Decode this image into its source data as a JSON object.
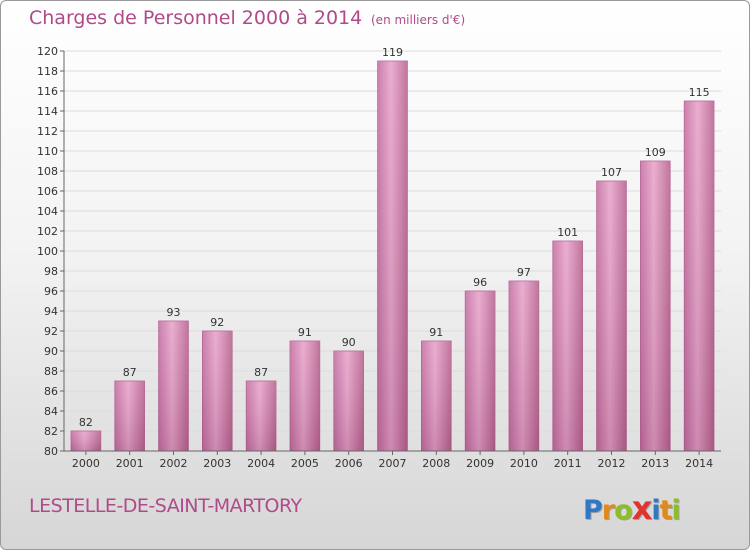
{
  "chart_data": {
    "type": "bar",
    "title": "Charges de Personnel 2000 à 2014",
    "subtitle": "(en milliers d'€)",
    "categories": [
      "2000",
      "2001",
      "2002",
      "2003",
      "2004",
      "2005",
      "2006",
      "2007",
      "2008",
      "2009",
      "2010",
      "2011",
      "2012",
      "2013",
      "2014"
    ],
    "values": [
      82,
      87,
      93,
      92,
      87,
      91,
      90,
      119,
      91,
      96,
      97,
      101,
      107,
      109,
      115
    ],
    "ylim": [
      80,
      120
    ],
    "ytick_step": 2,
    "grid": true,
    "bar_color": "#d98cba",
    "xlabel": "",
    "ylabel": ""
  },
  "footer": {
    "commune": "LESTELLE-DE-SAINT-MARTORY",
    "logo_letters": [
      "P",
      "r",
      "o",
      "x",
      "i",
      "t",
      "i"
    ],
    "logo_colors": [
      "#2f78c4",
      "#e08a1e",
      "#8cbf26",
      "#e0352e",
      "#2f78c4",
      "#e08a1e",
      "#8cbf26"
    ]
  }
}
